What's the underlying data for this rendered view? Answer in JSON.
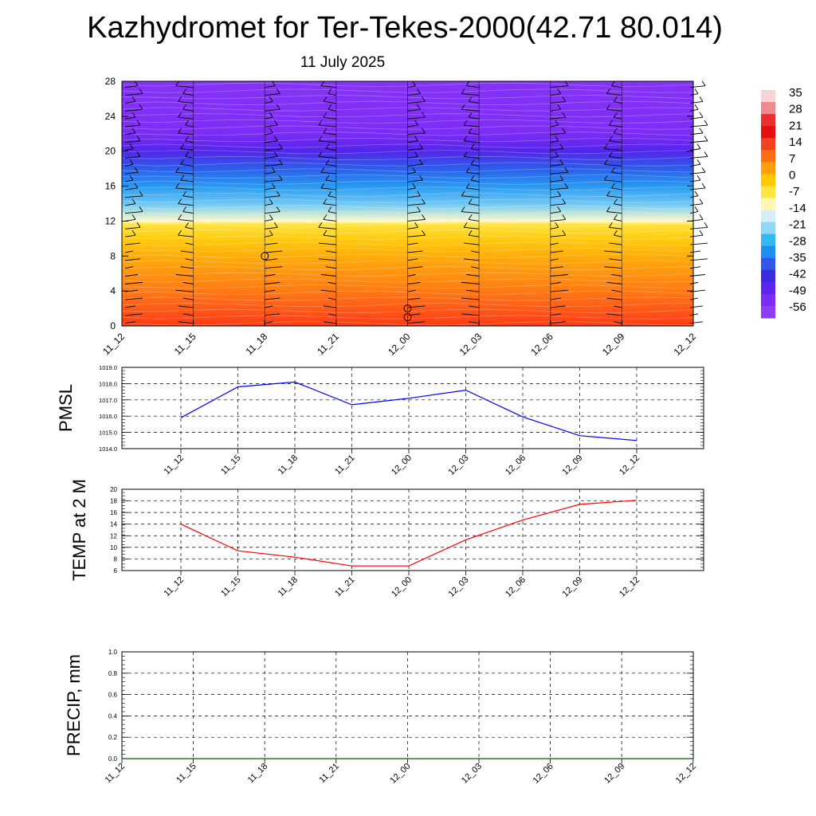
{
  "title": "Kazhydromet for Ter-Tekes-2000(42.71 80.014)",
  "subtitle": "11 July 2025",
  "chart_data": [
    {
      "id": "upper-air",
      "type": "heatmap",
      "x_ticks": [
        "11_12",
        "11_15",
        "11_18",
        "11_21",
        "12_00",
        "12_03",
        "12_06",
        "12_09",
        "12_12"
      ],
      "y_ticks": [
        0,
        4,
        8,
        12,
        16,
        20,
        24,
        28
      ],
      "ylim": [
        0,
        28
      ],
      "colorbar": {
        "labels": [
          "35",
          "28",
          "21",
          "14",
          "7",
          "0",
          "-7",
          "-14",
          "-21",
          "-28",
          "-35",
          "-42",
          "-49",
          "-56"
        ],
        "colors": [
          "#f9d3d6",
          "#f08a8f",
          "#e8312e",
          "#e60f0f",
          "#f0431f",
          "#ff6d10",
          "#ff9d0a",
          "#ffc800",
          "#ffe540",
          "#fff8b0",
          "#d6eef8",
          "#8fd8f7",
          "#33b8f2",
          "#1d8fee",
          "#2f57e8",
          "#3a2be0",
          "#5e24f0",
          "#7c2cf5",
          "#8f3cf5"
        ]
      },
      "temperature_profile": {
        "heights": [
          0,
          2,
          4,
          6,
          8,
          10,
          11.6,
          12,
          14,
          16,
          18,
          20,
          22,
          24,
          26,
          28
        ],
        "values": [
          24,
          17,
          12,
          7,
          2,
          -3,
          -7,
          -14,
          -25,
          -33,
          -42,
          -53,
          -56,
          -58,
          -59,
          -60
        ]
      },
      "wind_barbs": true
    },
    {
      "id": "pmsl",
      "type": "line",
      "ylabel": "PMSL",
      "categories": [
        "11_12",
        "11_15",
        "11_18",
        "11_21",
        "12_00",
        "12_03",
        "12_06",
        "12_09",
        "12_12"
      ],
      "y_ticks": [
        "1014.0",
        "1015.0",
        "1016.0",
        "1017.0",
        "1018.0",
        "1019.0"
      ],
      "ylim": [
        1014,
        1019
      ],
      "series": [
        {
          "values": [
            1015.9,
            1017.8,
            1018.1,
            1016.7,
            1017.1,
            1017.6,
            1015.95,
            1014.8,
            1014.5
          ],
          "color": "#0000ff"
        }
      ]
    },
    {
      "id": "temp2m",
      "type": "line",
      "ylabel": "TEMP at 2 M",
      "categories": [
        "11_12",
        "11_15",
        "11_18",
        "11_21",
        "12_00",
        "12_03",
        "12_06",
        "12_09",
        "12_12"
      ],
      "y_ticks": [
        "6",
        "8",
        "10",
        "12",
        "14",
        "16",
        "18",
        "20"
      ],
      "ylim": [
        6,
        20
      ],
      "series": [
        {
          "values": [
            14.0,
            9.4,
            8.3,
            6.8,
            6.8,
            11.3,
            14.7,
            17.4,
            18.1
          ],
          "color": "#ff0000"
        }
      ]
    },
    {
      "id": "precip",
      "type": "line",
      "ylabel": "PRECIP, mm",
      "categories": [
        "11_12",
        "11_15",
        "11_18",
        "11_21",
        "12_00",
        "12_03",
        "12_06",
        "12_09",
        "12_12"
      ],
      "y_ticks": [
        "0.0",
        "0.2",
        "0.4",
        "0.6",
        "0.8",
        "1.0"
      ],
      "ylim": [
        0,
        1
      ],
      "series": [
        {
          "values": [
            0,
            0,
            0,
            0,
            0,
            0,
            0,
            0,
            0
          ],
          "color": "#006400"
        }
      ]
    }
  ]
}
